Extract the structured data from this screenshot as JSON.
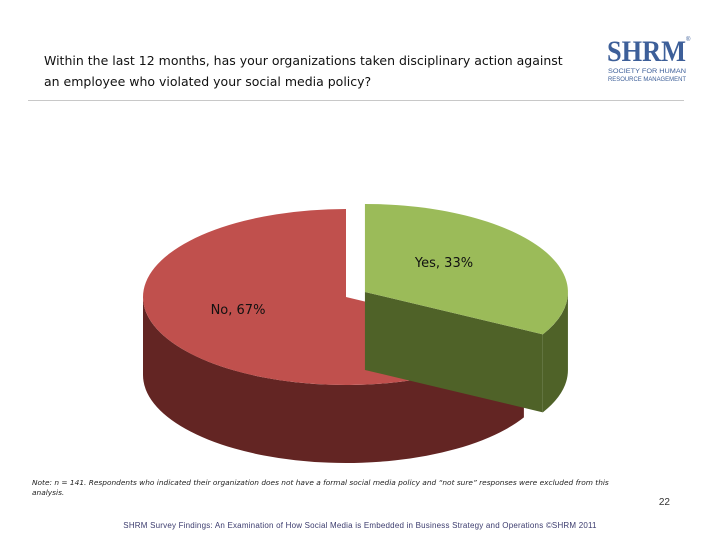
{
  "header": {
    "title_line1": "Within the last 12 months, has your organizations taken disciplinary action against",
    "title_line2": "an employee who violated your social media policy?"
  },
  "logo": {
    "wordmark": "SHRM",
    "registered": "®",
    "tagline_line1": "SOCIETY FOR HUMAN",
    "tagline_line2": "RESOURCE MANAGEMENT",
    "color": "#3d5f99"
  },
  "chart_data": {
    "type": "pie",
    "style": "3d-exploded",
    "title": "",
    "categories": [
      "Yes",
      "No"
    ],
    "values": [
      33,
      67
    ],
    "unit": "%",
    "data_labels": [
      "Yes, 33%",
      "No, 67%"
    ],
    "colors": {
      "Yes": {
        "top": "#9bbb59",
        "side": "#4f6228"
      },
      "No": {
        "top": "#c0504d",
        "side": "#632523"
      }
    },
    "legend": "none"
  },
  "footnote": "Note: n = 141. Respondents who indicated their organization does not have a formal social media policy and “not sure” responses were excluded from this analysis.",
  "page_number": "22",
  "footer": "SHRM Survey Findings: An Examination of How Social Media is Embedded in Business Strategy and Operations ©SHRM 2011"
}
